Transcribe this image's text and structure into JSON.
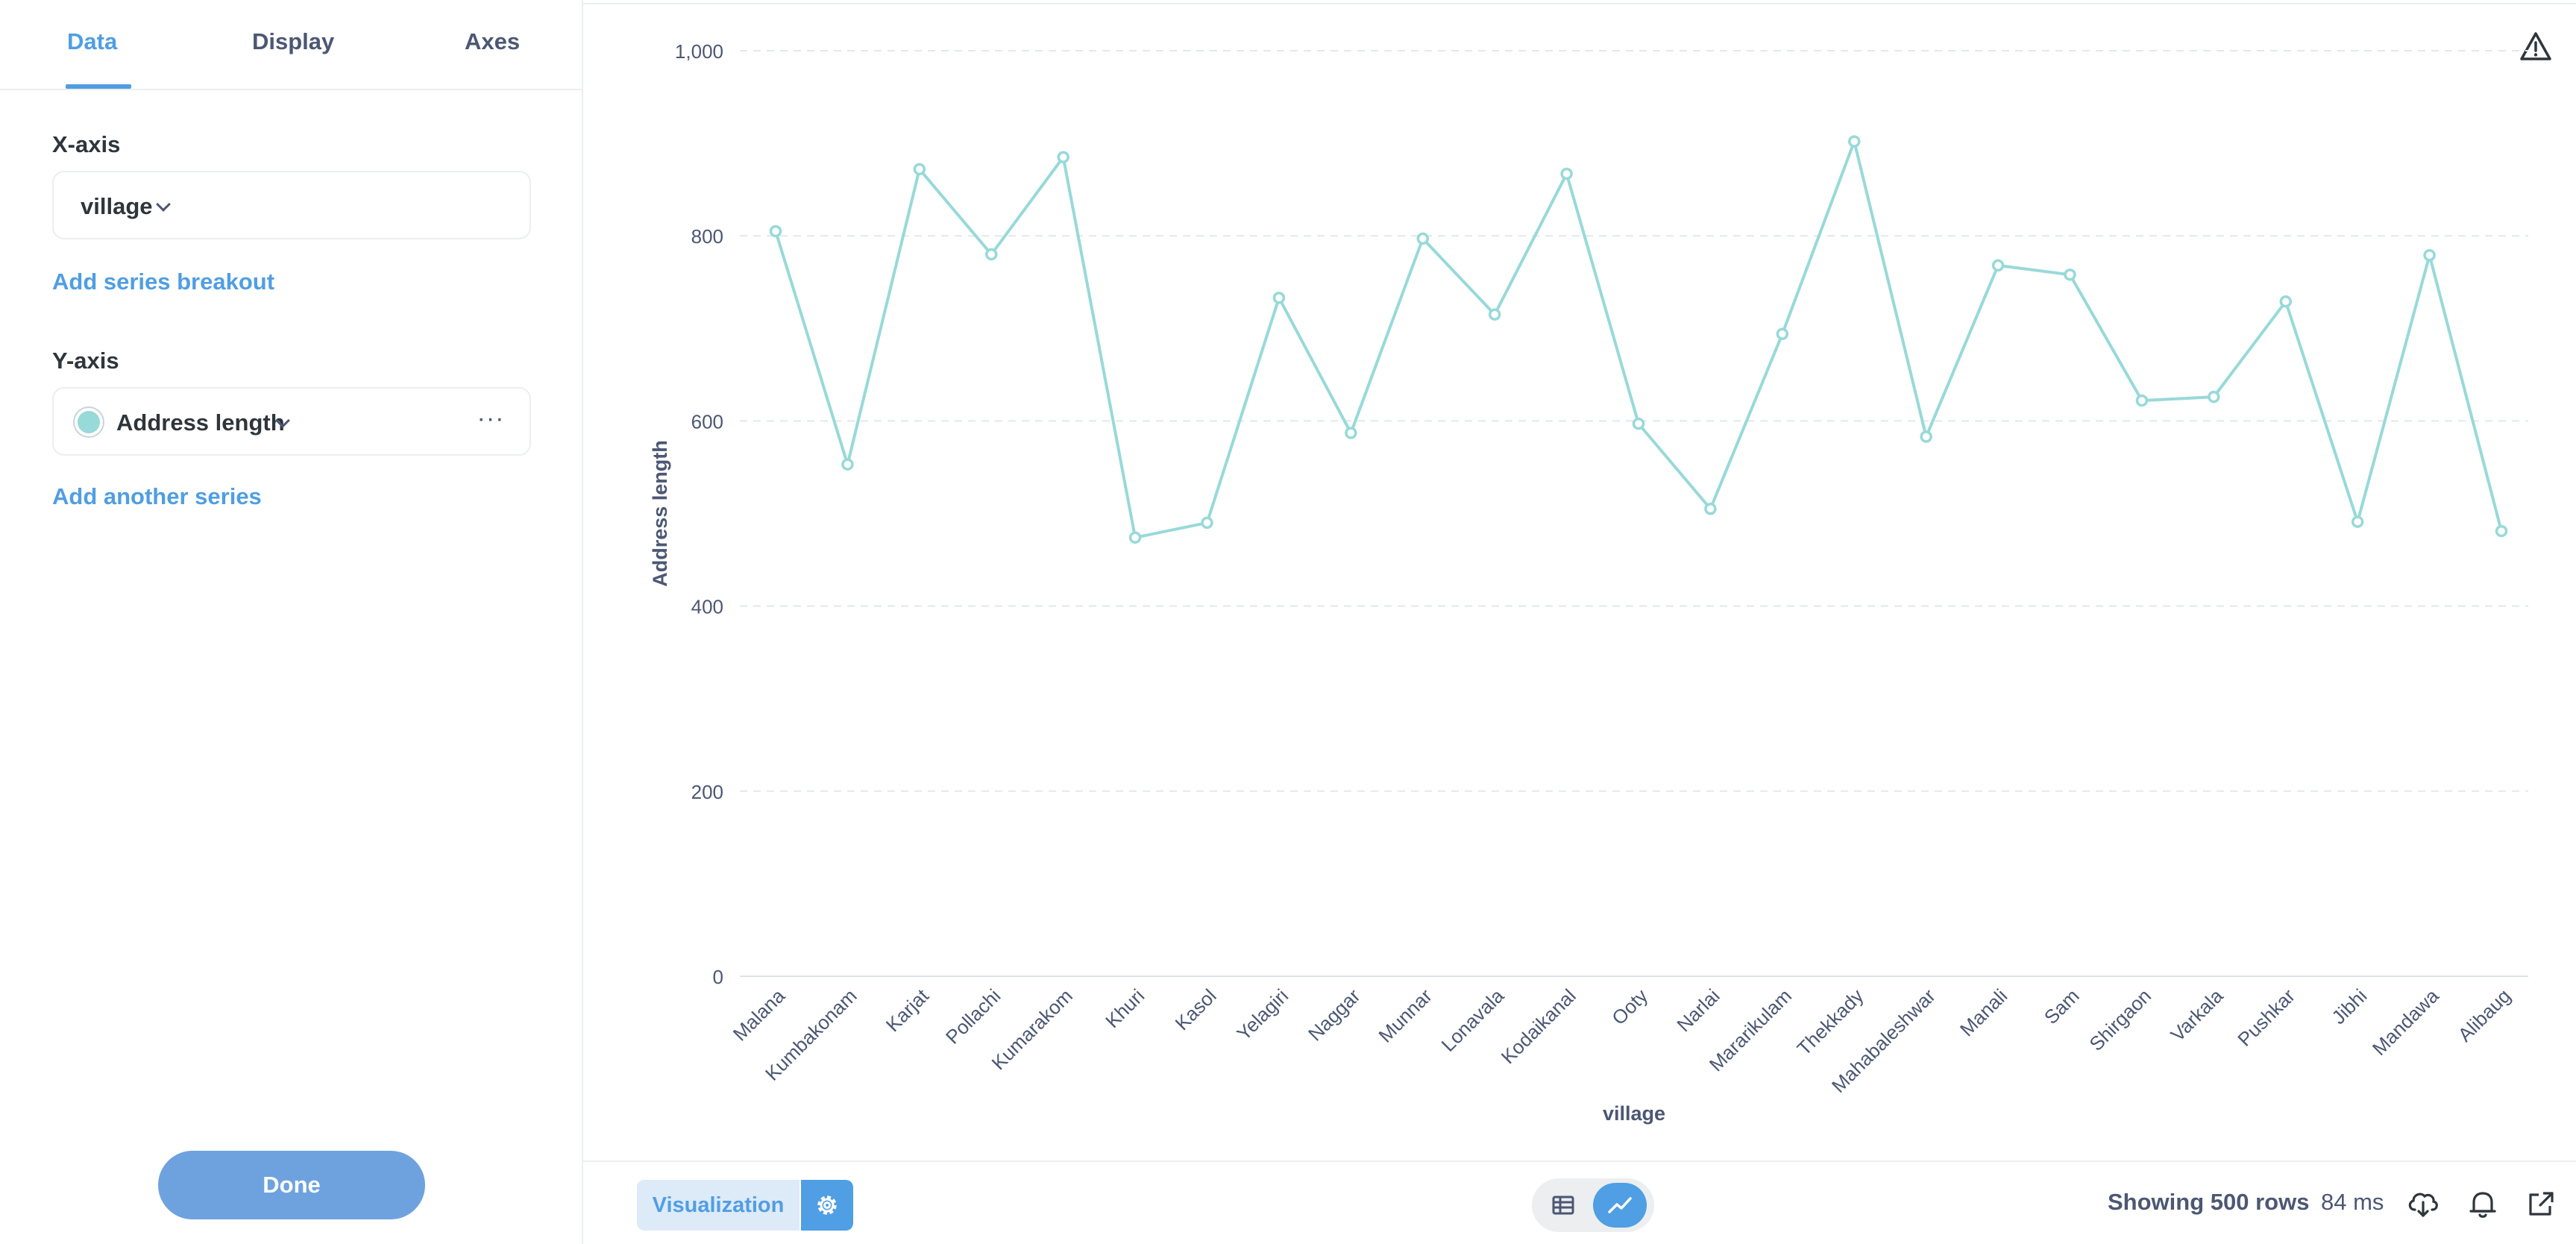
{
  "sidebar": {
    "tabs": [
      {
        "label": "Data",
        "active": true
      },
      {
        "label": "Display",
        "active": false
      },
      {
        "label": "Axes",
        "active": false
      }
    ],
    "x_axis": {
      "label": "X-axis",
      "value": "village",
      "add_breakout": "Add series breakout"
    },
    "y_axis": {
      "label": "Y-axis",
      "series_name": "Address length",
      "series_color": "#98d9d9",
      "add_series": "Add another series"
    },
    "done_label": "Done"
  },
  "icons": {
    "warning": "warning-triangle-icon",
    "gear": "gear-icon",
    "table": "table-icon",
    "line_chart": "line-chart-icon",
    "download": "download-cloud-icon",
    "bell": "bell-icon",
    "share": "external-link-icon"
  },
  "footer": {
    "visualization_label": "Visualization",
    "rows_text": "Showing 500 rows",
    "time_text": "84 ms"
  },
  "colors": {
    "accent": "#509ee3",
    "series": "#98d9d9",
    "grid": "#e4e8ec",
    "axis_text": "#4c5773"
  },
  "chart_data": {
    "type": "line",
    "xlabel": "village",
    "ylabel": "Address length",
    "ylim": [
      0,
      1000
    ],
    "yticks": [
      0,
      200,
      400,
      600,
      800,
      1000
    ],
    "ytick_labels": [
      "0",
      "200",
      "400",
      "600",
      "800",
      "1,000"
    ],
    "grid": true,
    "categories": [
      "Malana",
      "Kumbakonam",
      "Karjat",
      "Pollachi",
      "Kumarakom",
      "Khuri",
      "Kasol",
      "Yelagiri",
      "Naggar",
      "Munnar",
      "Lonavala",
      "Kodaikanal",
      "Ooty",
      "Narlai",
      "Mararikulam",
      "Thekkady",
      "Mahabaleshwar",
      "Manali",
      "Sam",
      "Shirgaon",
      "Varkala",
      "Pushkar",
      "Jibhi",
      "Mandawa",
      "Alibaug"
    ],
    "series": [
      {
        "name": "Address length",
        "values": [
          805,
          553,
          872,
          780,
          885,
          474,
          490,
          733,
          587,
          797,
          715,
          867,
          597,
          505,
          694,
          902,
          583,
          768,
          758,
          622,
          626,
          729,
          491,
          779,
          481
        ]
      }
    ]
  }
}
